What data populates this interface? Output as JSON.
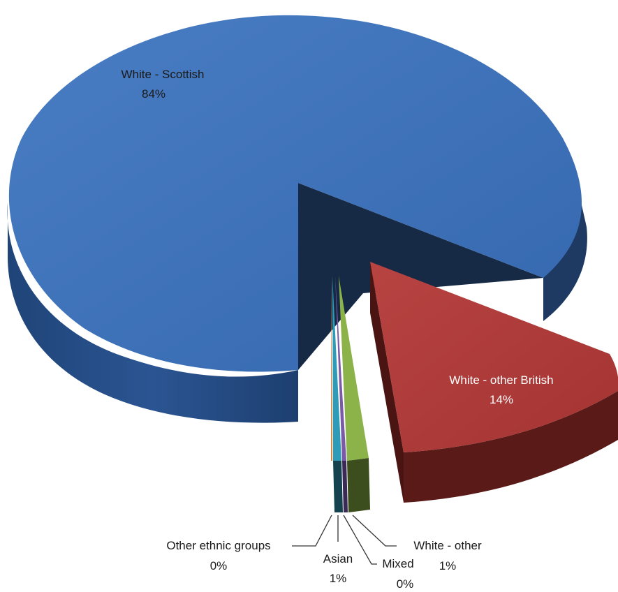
{
  "chart_data": {
    "type": "pie",
    "title": "",
    "style": "3d-exploded",
    "slices": [
      {
        "name": "White - Scottish",
        "value": 84,
        "label": "84%",
        "color": "#3D6FB5"
      },
      {
        "name": "White - other British",
        "value": 14,
        "label": "14%",
        "color": "#B03A38"
      },
      {
        "name": "White - other",
        "value": 1,
        "label": "1%",
        "color": "#8CB24A"
      },
      {
        "name": "Mixed",
        "value": 0,
        "label": "0%",
        "color": "#7A5AA6"
      },
      {
        "name": "Asian",
        "value": 1,
        "label": "1%",
        "color": "#2E9CB8"
      },
      {
        "name": "Other ethnic groups",
        "value": 0,
        "label": "0%",
        "color": "#D9843A"
      }
    ]
  }
}
